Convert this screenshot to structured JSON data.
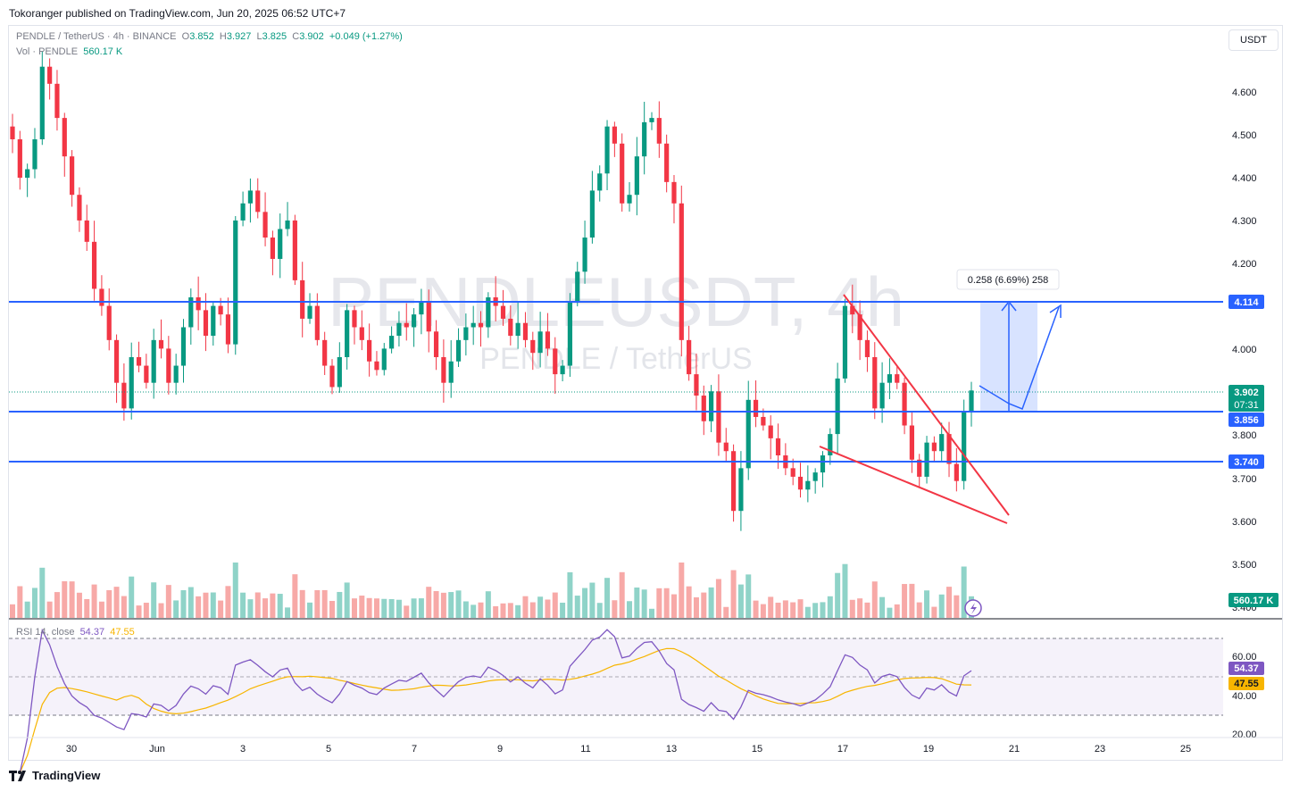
{
  "header": {
    "published_text": "Tokoranger published on TradingView.com, Jun 20, 2025 06:52 UTC+7"
  },
  "legend": {
    "symbol": "PENDLE / TetherUS · 4h · BINANCE",
    "o_label": "O",
    "o": "3.852",
    "h_label": "H",
    "h": "3.927",
    "l_label": "L",
    "l": "3.825",
    "c_label": "C",
    "c": "3.902",
    "change": "+0.049 (+1.27%)",
    "vol_label": "Vol · PENDLE",
    "vol": "560.17 K"
  },
  "currency_button": "USDT",
  "watermark": {
    "symbol": "PENDLEUSDT, 4h",
    "description": "PENDLE / TetherUS"
  },
  "price_axis": {
    "ticks": [
      "4.600",
      "4.500",
      "4.400",
      "4.300",
      "4.200",
      "4.000",
      "3.800",
      "3.700",
      "3.600",
      "3.500",
      "3.400"
    ]
  },
  "price_labels": {
    "level_top": "4.114",
    "current": "3.902",
    "countdown": "07:31",
    "level_mid": "3.856",
    "level_low": "3.740",
    "volume": "560.17 K"
  },
  "measure_label": "0.258 (6.69%) 258",
  "rsi": {
    "label": "RSI",
    "params": "14, close",
    "value": "54.37",
    "ma": "47.55",
    "axis_ticks": [
      "60.00",
      "40.00",
      "20.00"
    ]
  },
  "time_axis": {
    "ticks": [
      "30",
      "Jun",
      "3",
      "5",
      "7",
      "9",
      "11",
      "13",
      "15",
      "17",
      "19",
      "21",
      "23",
      "25"
    ]
  },
  "brand": "TradingView",
  "colors": {
    "up": "#089981",
    "down": "#f23645",
    "level": "#2962ff",
    "rsi": "#7e57c2",
    "rsi_ma": "#f7b500"
  },
  "chart_data": {
    "type": "candlestick",
    "symbol": "PENDLEUSDT",
    "interval": "4h",
    "exchange": "BINANCE",
    "price_range": [
      3.38,
      4.72
    ],
    "horizontal_levels": [
      4.114,
      3.856,
      3.74
    ],
    "last": {
      "open": 3.852,
      "high": 3.927,
      "low": 3.825,
      "close": 3.902
    },
    "candles_close": [
      4.49,
      4.4,
      4.42,
      4.49,
      4.66,
      4.62,
      4.54,
      4.45,
      4.36,
      4.3,
      4.25,
      4.14,
      4.1,
      4.02,
      3.92,
      3.86,
      3.98,
      3.96,
      3.92,
      4.02,
      4.0,
      3.92,
      3.96,
      4.05,
      4.12,
      4.09,
      4.03,
      4.1,
      4.08,
      4.01,
      4.3,
      4.34,
      4.37,
      4.32,
      4.26,
      4.21,
      4.28,
      4.3,
      4.16,
      4.07,
      4.1,
      4.02,
      3.96,
      3.91,
      3.98,
      4.09,
      4.05,
      4.02,
      3.97,
      3.95,
      4.0,
      4.03,
      4.06,
      4.05,
      4.08,
      4.11,
      4.04,
      3.98,
      3.92,
      3.97,
      4.02,
      4.05,
      4.06,
      4.05,
      4.12,
      4.1,
      4.07,
      4.03,
      4.06,
      4.02,
      3.99,
      4.04,
      4.0,
      3.94,
      3.96,
      4.11,
      4.18,
      4.26,
      4.37,
      4.41,
      4.52,
      4.48,
      4.34,
      4.36,
      4.45,
      4.53,
      4.54,
      4.48,
      4.39,
      4.34,
      4.02,
      3.94,
      3.89,
      3.83,
      3.9,
      3.78,
      3.76,
      3.62,
      3.72,
      3.88,
      3.84,
      3.82,
      3.79,
      3.75,
      3.72,
      3.7,
      3.67,
      3.69,
      3.71,
      3.75,
      3.8,
      3.93,
      4.1,
      4.08,
      4.02,
      3.98,
      3.86,
      3.92,
      3.94,
      3.92,
      3.82,
      3.74,
      3.7,
      3.78,
      3.76,
      3.8,
      3.73,
      3.69,
      3.852,
      3.902
    ]
  }
}
